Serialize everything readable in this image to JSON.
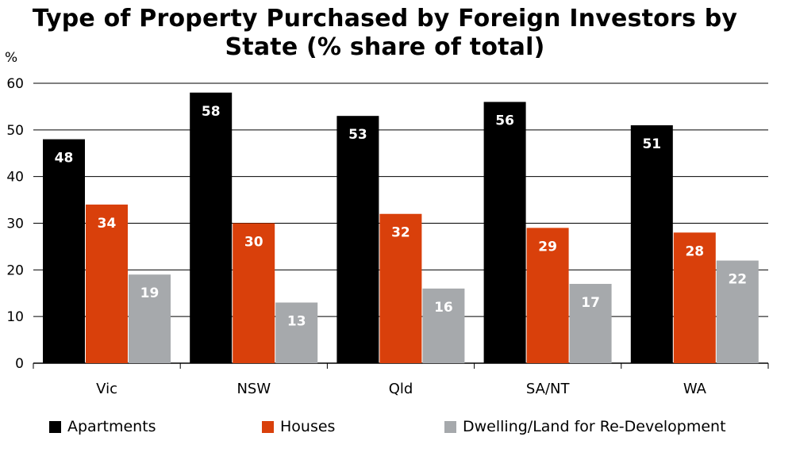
{
  "title_line1": "Type of Property Purchased by Foreign Investors by",
  "title_line2": "State (% share of total)",
  "chart_data": {
    "type": "bar",
    "title": "Type of Property Purchased by Foreign Investors by State (% share of total)",
    "ylabel": "%",
    "ylim": [
      0,
      60
    ],
    "yticks": [
      0,
      10,
      20,
      30,
      40,
      50,
      60
    ],
    "grid": true,
    "legend_position": "bottom",
    "categories": [
      "Vic",
      "NSW",
      "Qld",
      "SA/NT",
      "WA"
    ],
    "series": [
      {
        "name": "Apartments",
        "color": "#000000",
        "values": [
          48,
          58,
          53,
          56,
          51
        ]
      },
      {
        "name": "Houses",
        "color": "#d9400b",
        "values": [
          34,
          30,
          32,
          29,
          28
        ]
      },
      {
        "name": "Dwelling/Land for Re-Development",
        "color": "#a6a9ac",
        "values": [
          19,
          13,
          16,
          17,
          22
        ]
      }
    ]
  }
}
